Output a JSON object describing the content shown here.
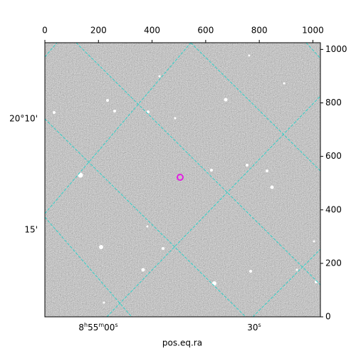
{
  "chart_data": {
    "type": "image",
    "xlabel": "pos.eq.ra",
    "xlim": [
      0,
      1028
    ],
    "xticks": [
      0,
      200,
      400,
      600,
      800,
      1000
    ],
    "ylim": [
      0,
      1025
    ],
    "yticks": [
      0,
      200,
      400,
      600,
      800,
      1000
    ],
    "ra_ticks": [
      [
        "8",
        "h",
        "55",
        "m",
        "00",
        "s"
      ],
      [
        "30",
        "s"
      ]
    ],
    "dec_ticks": [
      "20°10'",
      "15'"
    ]
  }
}
